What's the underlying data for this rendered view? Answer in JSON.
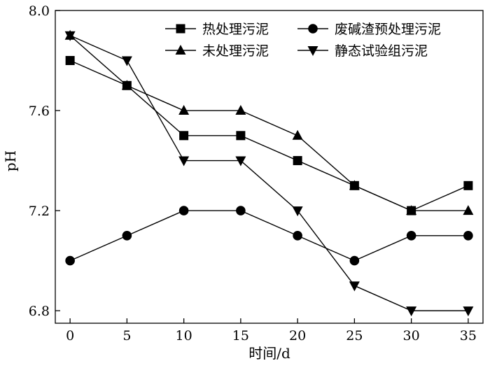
{
  "chart_data": {
    "type": "line",
    "xlabel": "时间/d",
    "ylabel": "pH",
    "x": [
      0,
      5,
      10,
      15,
      20,
      25,
      30,
      35
    ],
    "xlim": [
      -1.3,
      36.3
    ],
    "ylim": [
      6.75,
      8.0
    ],
    "x_ticks": [
      0,
      5,
      10,
      15,
      20,
      25,
      30,
      35
    ],
    "y_ticks": [
      6.8,
      7.2,
      7.6,
      8.0
    ],
    "x_tick_labels": [
      "0",
      "5",
      "10",
      "15",
      "20",
      "25",
      "30",
      "35"
    ],
    "y_tick_labels": [
      "6.8",
      "7.2",
      "7.6",
      "8.0"
    ],
    "grid": false,
    "legend_position": "top-right",
    "series": [
      {
        "name": "热处理污泥",
        "marker": "square",
        "values": [
          7.8,
          7.7,
          7.5,
          7.5,
          7.4,
          7.3,
          7.2,
          7.3
        ]
      },
      {
        "name": "废碱渣预处理污泥",
        "marker": "circle",
        "values": [
          7.0,
          7.1,
          7.2,
          7.2,
          7.1,
          7.0,
          7.1,
          7.1
        ]
      },
      {
        "name": "未处理污泥",
        "marker": "triangle-up",
        "values": [
          7.9,
          7.7,
          7.6,
          7.6,
          7.5,
          7.3,
          7.2,
          7.2
        ]
      },
      {
        "name": "静态试验组污泥",
        "marker": "triangle-down",
        "values": [
          7.9,
          7.8,
          7.4,
          7.4,
          7.2,
          6.9,
          6.8,
          6.8
        ]
      }
    ]
  },
  "colors": {
    "line": "#000000",
    "marker": "#000000",
    "background": "#ffffff"
  }
}
